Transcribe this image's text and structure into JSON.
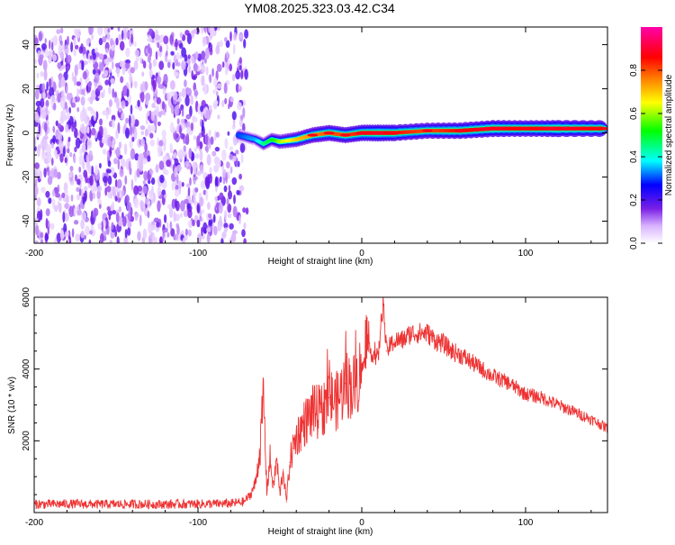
{
  "figure": {
    "title": "YM08.2025.323.03.42.C34"
  },
  "chart_data": [
    {
      "type": "heatmap",
      "title": "YM08.2025.323.03.42.C34",
      "xlabel": "Height of straight line (km)",
      "ylabel": "Frequency (Hz)",
      "xlim": [
        -200,
        150
      ],
      "ylim": [
        -50,
        48
      ],
      "x_ticks": [
        -200,
        -100,
        0,
        100
      ],
      "x_tick_labels": [
        "-200",
        "-100",
        "0",
        "100"
      ],
      "y_ticks": [
        -40,
        -20,
        0,
        20,
        40
      ],
      "y_tick_labels": [
        "-40",
        "-20",
        "0",
        "20",
        "40"
      ],
      "noise_region_km": [
        -200,
        -70
      ],
      "signal_ridge": {
        "x": [
          -75,
          -65,
          -60,
          -55,
          -50,
          -40,
          -30,
          -20,
          -10,
          0,
          10,
          20,
          40,
          60,
          80,
          100,
          120,
          150
        ],
        "freq_hz": [
          -1,
          -3,
          -5,
          -3,
          -4,
          -3,
          -1,
          0,
          -1,
          0,
          0,
          0,
          1,
          1,
          2,
          2,
          2,
          2
        ],
        "amplitude": [
          0.3,
          0.35,
          0.45,
          0.5,
          0.6,
          0.7,
          0.75,
          0.8,
          0.8,
          0.85,
          0.9,
          0.85,
          0.8,
          0.85,
          0.9,
          0.85,
          0.9,
          0.85
        ]
      },
      "colorbar": {
        "label": "Normalized spectral amplitude",
        "range": [
          0,
          1
        ],
        "ticks": [
          0.0,
          0.2,
          0.4,
          0.6,
          0.8
        ],
        "tick_labels": [
          "0.0",
          "0.2",
          "0.4",
          "0.6",
          "0.8"
        ],
        "colormap": [
          "#ffffff",
          "#d9b3ff",
          "#7a1fe6",
          "#0000ff",
          "#00ffff",
          "#00ff00",
          "#ffff00",
          "#ff8000",
          "#ff0000",
          "#ff00aa"
        ]
      }
    },
    {
      "type": "line",
      "xlabel": "Height of straight line (km)",
      "ylabel": "SNR (10 * v/v)",
      "xlim": [
        -200,
        150
      ],
      "ylim": [
        0,
        6000
      ],
      "x_ticks": [
        -200,
        -100,
        0,
        100
      ],
      "x_tick_labels": [
        "-200",
        "-100",
        "0",
        "100"
      ],
      "y_ticks": [
        2000,
        4000,
        6000
      ],
      "y_tick_labels": [
        "2000",
        "4000",
        "6000"
      ],
      "line_color": "#ee3333",
      "series": [
        {
          "name": "SNR",
          "x": [
            -200,
            -180,
            -160,
            -140,
            -120,
            -100,
            -80,
            -72,
            -68,
            -65,
            -62,
            -60,
            -58,
            -56,
            -54,
            -52,
            -50,
            -48,
            -46,
            -44,
            -42,
            -40,
            -35,
            -30,
            -25,
            -20,
            -15,
            -10,
            -5,
            0,
            5,
            10,
            13,
            15,
            20,
            25,
            30,
            35,
            40,
            45,
            50,
            55,
            60,
            70,
            80,
            90,
            100,
            110,
            120,
            130,
            140,
            150
          ],
          "y": [
            230,
            240,
            230,
            235,
            230,
            240,
            250,
            300,
            500,
            800,
            1800,
            3300,
            600,
            1500,
            700,
            1500,
            500,
            1200,
            300,
            1400,
            1800,
            2100,
            2500,
            2800,
            2800,
            3200,
            3100,
            3600,
            3500,
            4000,
            4500,
            4300,
            5900,
            4500,
            4800,
            4800,
            5000,
            5000,
            5000,
            4800,
            4700,
            4500,
            4400,
            4100,
            3800,
            3600,
            3300,
            3200,
            3000,
            2800,
            2600,
            2350
          ]
        }
      ]
    }
  ]
}
